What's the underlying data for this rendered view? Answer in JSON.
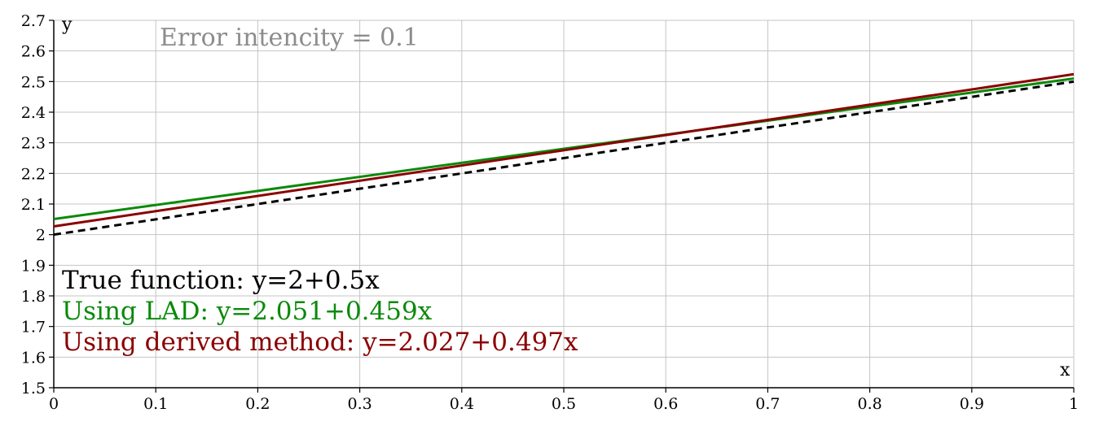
{
  "chart_data": {
    "type": "line",
    "annotation": "Error intencity = 0.1",
    "xlabel": "x",
    "ylabel": "y",
    "xlim": [
      0,
      1
    ],
    "ylim": [
      1.5,
      2.7
    ],
    "grid": true,
    "x_ticks": [
      0,
      0.1,
      0.2,
      0.3,
      0.4,
      0.5,
      0.6,
      0.7,
      0.8,
      0.9,
      1
    ],
    "x_tick_labels": [
      "0",
      "0.1",
      "0.2",
      "0.3",
      "0.4",
      "0.5",
      "0.6",
      "0.7",
      "0.8",
      "0.9",
      "1"
    ],
    "y_ticks": [
      1.5,
      1.6,
      1.7,
      1.8,
      1.9,
      2,
      2.1,
      2.2,
      2.3,
      2.4,
      2.5,
      2.6,
      2.7
    ],
    "y_tick_labels": [
      "1.5",
      "1.6",
      "1.7",
      "1.8",
      "1.9",
      "2",
      "2.1",
      "2.2",
      "2.3",
      "2.4",
      "2.5",
      "2.6",
      "2.7"
    ],
    "legend_placement": "bottom-left",
    "series": [
      {
        "label": "True function: y=2+0.5x",
        "intercept": 2,
        "slope": 0.5,
        "x": [
          0,
          1
        ],
        "y": [
          2.0,
          2.5
        ],
        "color": "#000000",
        "style": "dashed"
      },
      {
        "label": "Using LAD: y=2.051+0.459x",
        "intercept": 2.051,
        "slope": 0.459,
        "x": [
          0,
          1
        ],
        "y": [
          2.051,
          2.51
        ],
        "color": "#0a8a0a",
        "style": "solid"
      },
      {
        "label": "Using derived method: y=2.027+0.497x",
        "intercept": 2.027,
        "slope": 0.497,
        "x": [
          0,
          1
        ],
        "y": [
          2.027,
          2.524
        ],
        "color": "#8b0000",
        "style": "solid"
      }
    ]
  }
}
